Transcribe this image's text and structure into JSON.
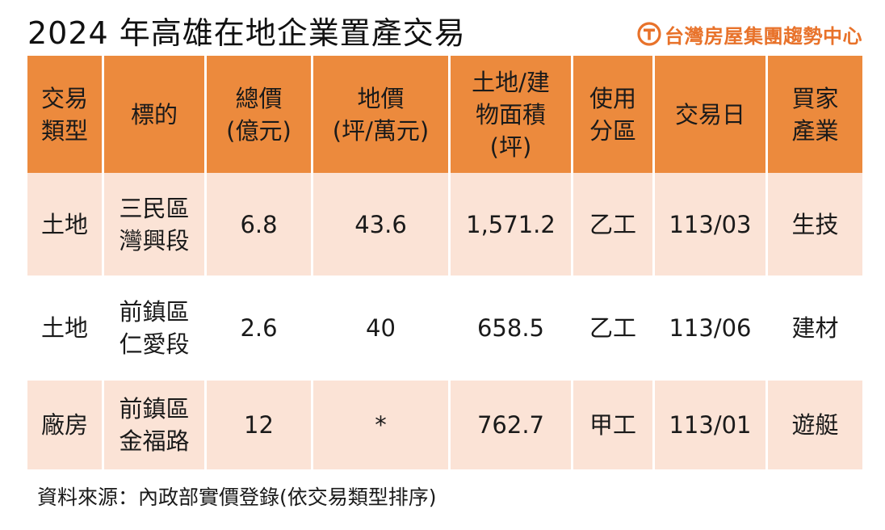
{
  "header": {
    "title": "2024 年高雄在地企業置產交易",
    "brand": "台灣房屋集團趨勢中心",
    "brand_color": "#e8722a"
  },
  "colors": {
    "header_bg": "#ec8a3d",
    "row_tint": "#fbe3d6"
  },
  "table": {
    "columns": [
      {
        "lines": [
          "交易",
          "類型"
        ]
      },
      {
        "lines": [
          "標的"
        ]
      },
      {
        "lines": [
          "總價",
          "(億元)"
        ]
      },
      {
        "lines": [
          "地價",
          "(坪/萬元)"
        ]
      },
      {
        "lines": [
          "土地/建",
          "物面積",
          "(坪)"
        ]
      },
      {
        "lines": [
          "使用",
          "分區"
        ]
      },
      {
        "lines": [
          "交易日"
        ]
      },
      {
        "lines": [
          "買家",
          "產業"
        ]
      }
    ],
    "rows": [
      {
        "type": "土地",
        "target": [
          "三民區",
          "灣興段"
        ],
        "total": "6.8",
        "land_price": "43.6",
        "area": "1,571.2",
        "zone": "乙工",
        "date": "113/03",
        "industry": "生技"
      },
      {
        "type": "土地",
        "target": [
          "前鎮區",
          "仁愛段"
        ],
        "total": "2.6",
        "land_price": "40",
        "area": "658.5",
        "zone": "乙工",
        "date": "113/06",
        "industry": "建材"
      },
      {
        "type": "廠房",
        "target": [
          "前鎮區",
          "金福路"
        ],
        "total": "12",
        "land_price": "*",
        "area": "762.7",
        "zone": "甲工",
        "date": "113/01",
        "industry": "遊艇"
      }
    ]
  },
  "footer": {
    "source": "資料來源：內政部實價登錄(依交易類型排序)"
  }
}
